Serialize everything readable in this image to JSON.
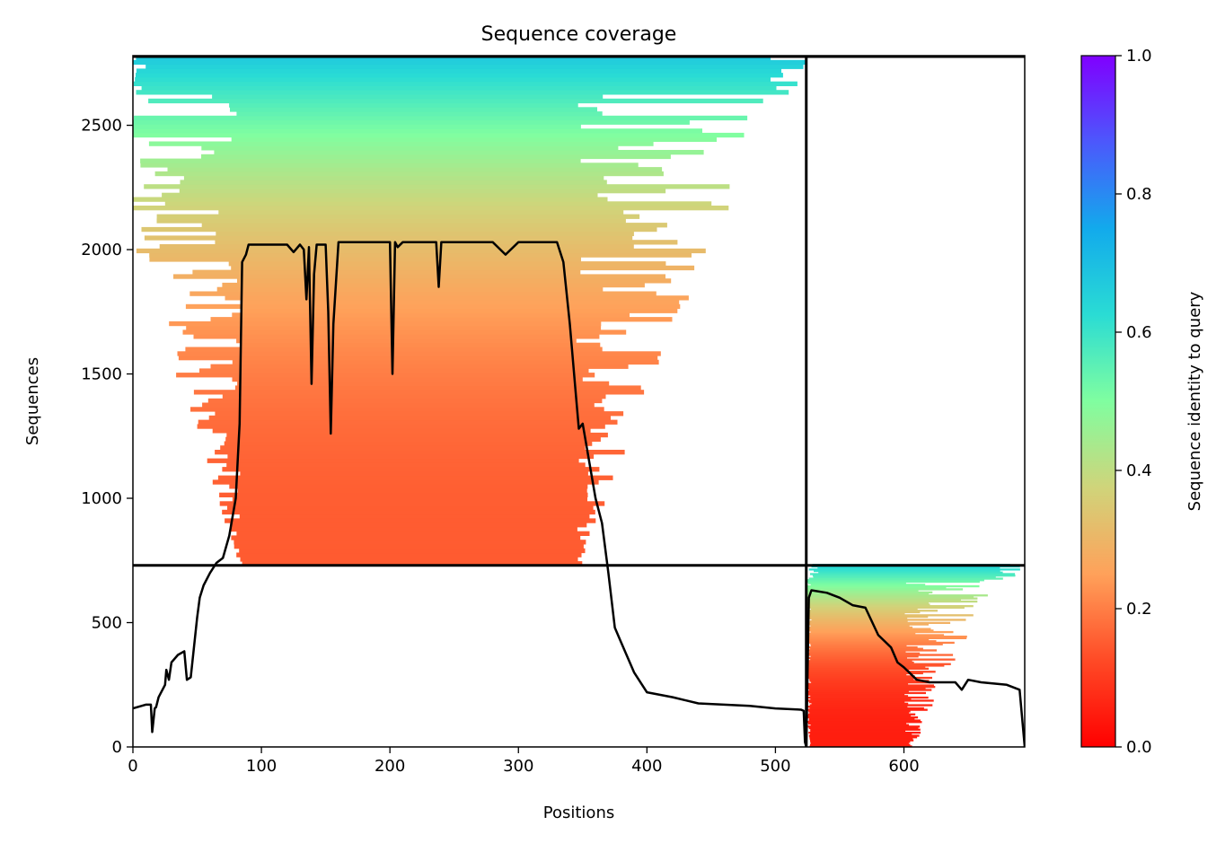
{
  "chart_data": {
    "type": "heatmap",
    "title": "Sequence coverage",
    "xlabel": "Positions",
    "ylabel": "Sequences",
    "xlim": [
      0,
      694
    ],
    "ylim": [
      0,
      2780
    ],
    "x_ticks": [
      "0",
      "100",
      "200",
      "300",
      "400",
      "500",
      "600"
    ],
    "y_ticks": [
      "0",
      "500",
      "1000",
      "1500",
      "2000",
      "2500"
    ],
    "colorbar": {
      "label": "Sequence identity to query",
      "range": [
        0,
        1
      ],
      "ticks": [
        "0.0",
        "0.2",
        "0.4",
        "0.6",
        "0.8",
        "1.0"
      ],
      "colormap": "rainbow"
    },
    "block_boundaries": {
      "x_split": 524,
      "y_split": 730
    },
    "coverage_blocks": [
      {
        "x_start": 0,
        "x_end": 524,
        "y_start": 730,
        "y_end": 2780,
        "core_x_start": 85,
        "core_x_end": 345,
        "identity_bottom": 0.15,
        "identity_top": 0.68
      },
      {
        "x_start": 524,
        "x_end": 694,
        "y_start": 0,
        "y_end": 730,
        "core_x_start": 528,
        "core_x_end": 600,
        "identity_bottom": 0.05,
        "identity_top": 0.65
      }
    ],
    "coverage_line": {
      "color": "#000000",
      "x": [
        0,
        10,
        14,
        15,
        17,
        18,
        20,
        25,
        26,
        28,
        30,
        35,
        40,
        42,
        45,
        50,
        52,
        55,
        60,
        65,
        70,
        75,
        80,
        83,
        85,
        88,
        90,
        100,
        120,
        125,
        130,
        133,
        135,
        137,
        139,
        141,
        143,
        145,
        150,
        152,
        154,
        156,
        160,
        170,
        180,
        190,
        200,
        202,
        204,
        206,
        210,
        220,
        236,
        238,
        240,
        250,
        280,
        290,
        300,
        310,
        330,
        335,
        340,
        345,
        347,
        350,
        360,
        365,
        370,
        375,
        380,
        390,
        400,
        420,
        440,
        460,
        480,
        500,
        520,
        522,
        523,
        524,
        526,
        528,
        540,
        550,
        560,
        570,
        580,
        590,
        595,
        600,
        610,
        620,
        640,
        645,
        650,
        660,
        680,
        690,
        694
      ],
      "y": [
        155,
        170,
        170,
        60,
        155,
        160,
        200,
        250,
        310,
        270,
        340,
        370,
        385,
        270,
        280,
        520,
        600,
        650,
        700,
        740,
        760,
        850,
        1000,
        1300,
        1950,
        1980,
        2020,
        2020,
        2020,
        1990,
        2020,
        2000,
        1800,
        2010,
        1460,
        1900,
        2020,
        2020,
        2020,
        1750,
        1260,
        1700,
        2030,
        2030,
        2030,
        2030,
        2030,
        1500,
        2030,
        2010,
        2030,
        2030,
        2030,
        1850,
        2030,
        2030,
        2030,
        1980,
        2030,
        2030,
        2030,
        1950,
        1700,
        1400,
        1280,
        1300,
        1000,
        900,
        700,
        480,
        420,
        300,
        220,
        200,
        175,
        170,
        165,
        155,
        150,
        145,
        20,
        0,
        600,
        630,
        620,
        600,
        570,
        560,
        450,
        400,
        340,
        320,
        270,
        260,
        260,
        230,
        270,
        260,
        250,
        230,
        0
      ]
    }
  }
}
